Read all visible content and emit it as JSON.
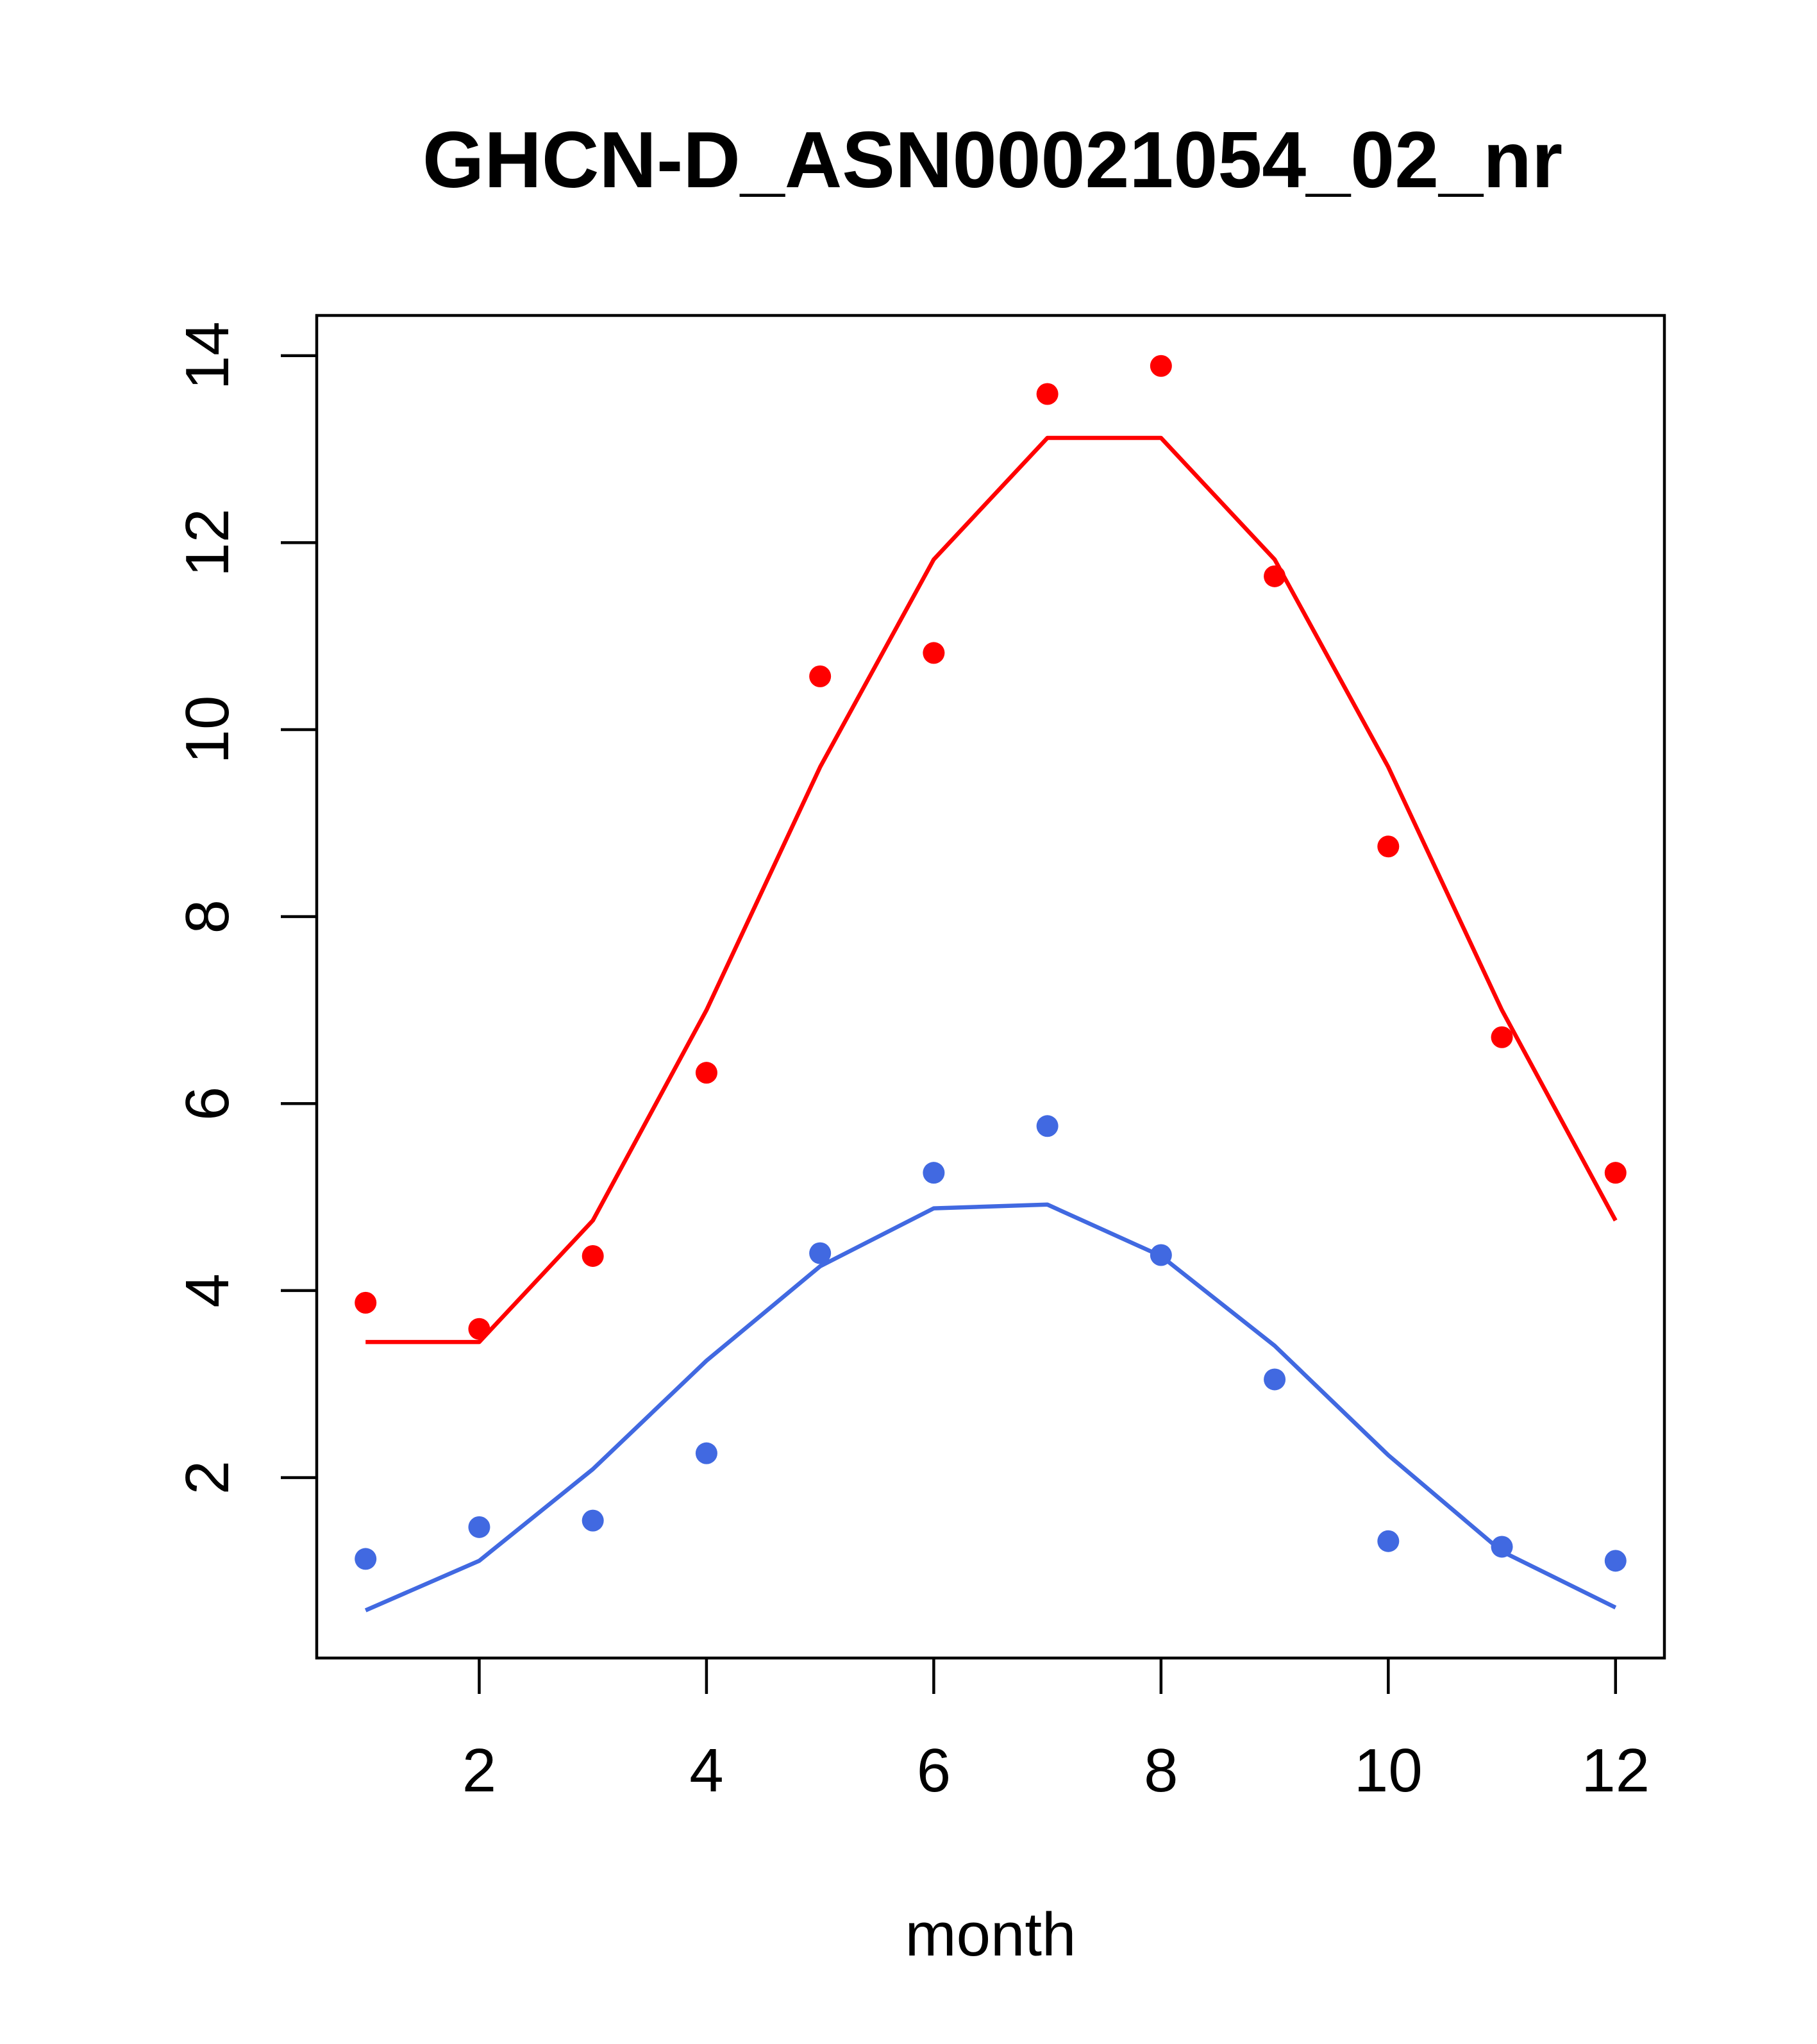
{
  "chart_data": {
    "type": "scatter",
    "title": "GHCN-D_ASN00021054_02_nr",
    "xlabel": "month",
    "ylabel": "",
    "xlim": [
      0.57,
      12.43
    ],
    "ylim": [
      0.07,
      14.43
    ],
    "x_ticks": [
      2,
      4,
      6,
      8,
      10,
      12
    ],
    "y_ticks": [
      2,
      4,
      6,
      8,
      10,
      12,
      14
    ],
    "grid": false,
    "legend": "none",
    "x": [
      1,
      2,
      3,
      4,
      5,
      6,
      7,
      8,
      9,
      10,
      11,
      12
    ],
    "series": [
      {
        "color": "#ff0000",
        "points": [
          3.87,
          3.59,
          4.37,
          6.33,
          10.57,
          10.82,
          13.59,
          13.89,
          11.64,
          8.75,
          6.71,
          5.26
        ],
        "fit": [
          3.45,
          3.45,
          4.75,
          7.0,
          9.6,
          11.82,
          13.12,
          13.12,
          11.82,
          9.6,
          7.0,
          4.75
        ]
      },
      {
        "color": "#4169e1",
        "points": [
          1.13,
          1.47,
          1.54,
          2.26,
          4.4,
          5.26,
          5.76,
          4.38,
          3.05,
          1.32,
          1.26,
          1.11
        ],
        "fit": [
          0.58,
          1.11,
          2.09,
          3.25,
          4.26,
          4.88,
          4.92,
          4.37,
          3.41,
          2.24,
          1.21,
          0.61
        ]
      }
    ]
  }
}
